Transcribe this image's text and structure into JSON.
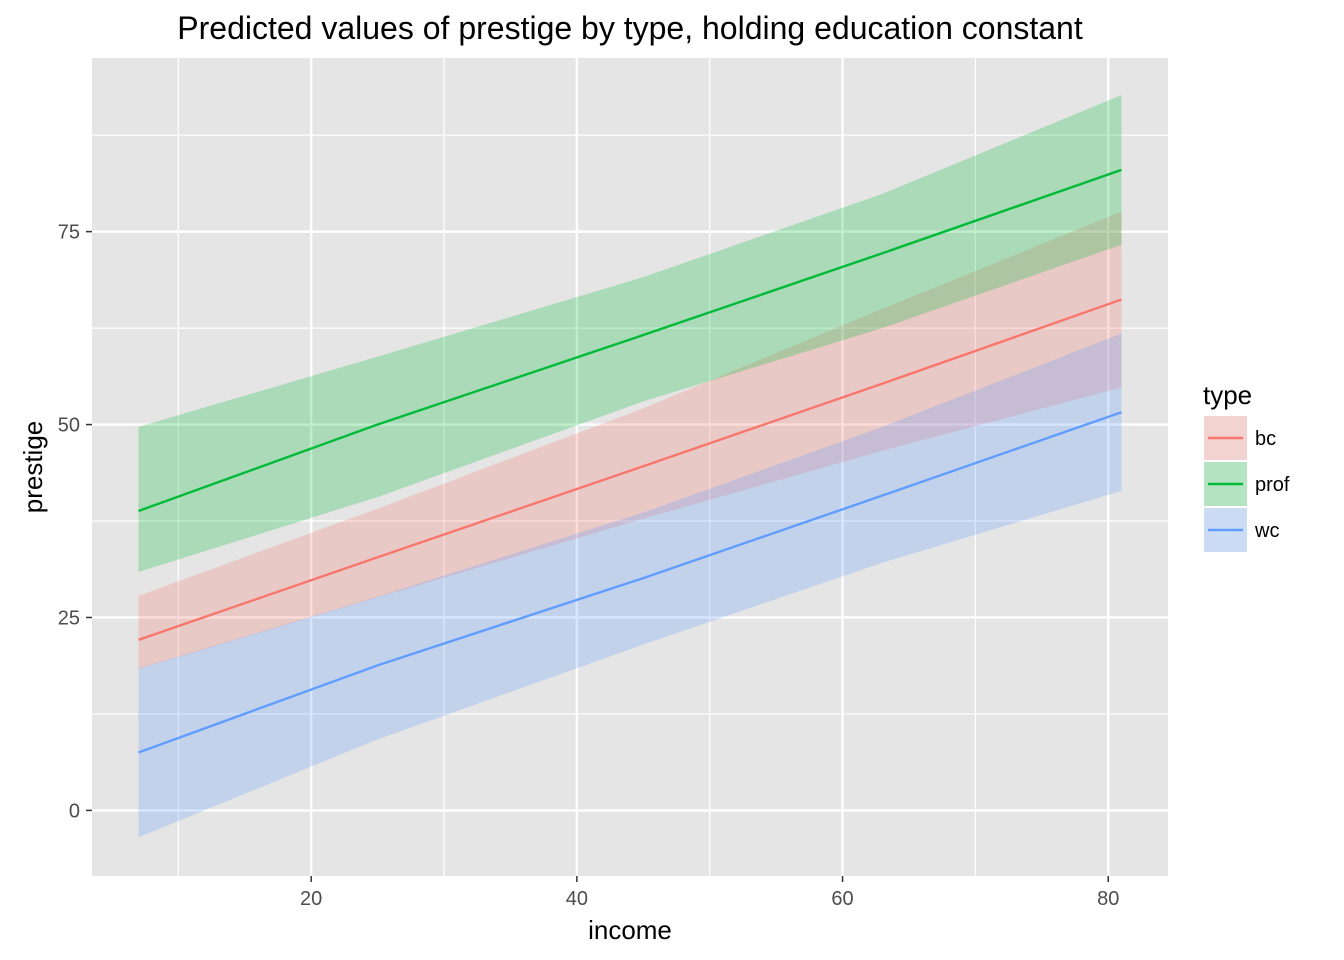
{
  "chart_data": {
    "type": "line",
    "title": "Predicted values of prestige by type, holding education constant",
    "xlabel": "income",
    "ylabel": "prestige",
    "xlim": [
      3.5,
      84.5
    ],
    "ylim": [
      -8.5,
      97.5
    ],
    "x_ticks": [
      20,
      40,
      60,
      80
    ],
    "y_ticks": [
      0,
      25,
      50,
      75
    ],
    "grid": true,
    "legend": {
      "title": "type",
      "position": "right"
    },
    "x": [
      7,
      25,
      45,
      63,
      81
    ],
    "series": [
      {
        "name": "bc",
        "color": "#f8766d",
        "fill": "#f8766d",
        "values": [
          22.1,
          32.8,
          44.6,
          55.3,
          66.2
        ],
        "lower": [
          18.3,
          27.6,
          37.8,
          46.6,
          54.8
        ],
        "upper": [
          27.8,
          39.1,
          52.1,
          65.0,
          77.6
        ]
      },
      {
        "name": "prof",
        "color": "#00ba38",
        "fill": "#00ba38",
        "values": [
          38.8,
          50.0,
          61.6,
          72.2,
          83.0
        ],
        "lower": [
          30.9,
          40.6,
          53.0,
          62.5,
          73.3
        ],
        "upper": [
          49.7,
          58.8,
          69.1,
          79.9,
          92.7
        ]
      },
      {
        "name": "wc",
        "color": "#619cff",
        "fill": "#619cff",
        "values": [
          7.5,
          18.8,
          30.1,
          40.8,
          51.6
        ],
        "lower": [
          -3.5,
          9.2,
          21.5,
          32.1,
          41.4
        ],
        "upper": [
          18.4,
          27.7,
          38.6,
          49.7,
          61.8
        ]
      }
    ]
  }
}
